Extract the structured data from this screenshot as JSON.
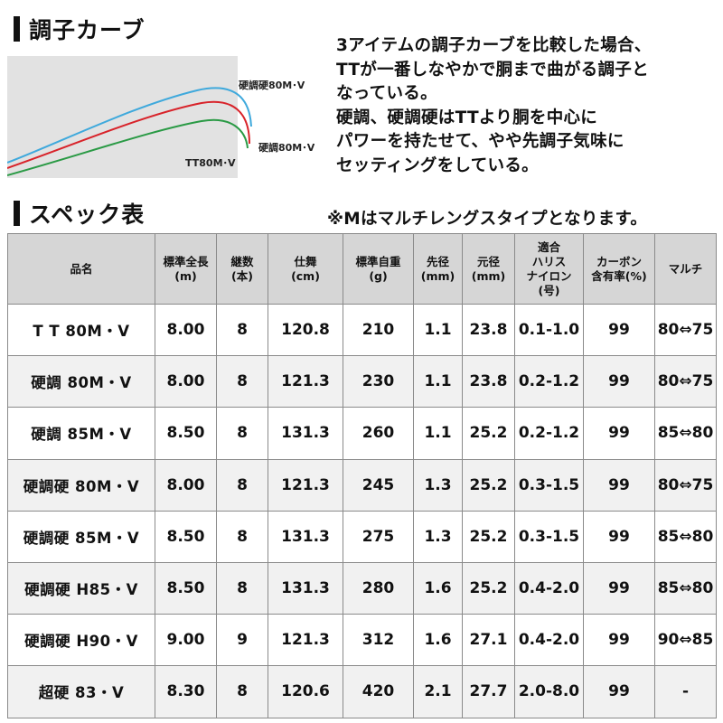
{
  "curve_section": {
    "title": "調子カーブ",
    "labels": {
      "kochokou": "硬調硬80M･V",
      "kocho": "硬調80M･V",
      "tt": "TT80M･V"
    },
    "colors": {
      "kochokou": "#3fa9dc",
      "kocho": "#d8232a",
      "tt": "#2a9a45",
      "background": "#e2e2e2"
    }
  },
  "description": [
    "3アイテムの調子カーブを比較した場合、",
    "TTが一番しなやかで胴まで曲がる調子と",
    "なっている。",
    "硬調、硬調硬はTTより胴を中心に",
    "パワーを持たせて、やや先調子気味に",
    "セッティングをしている。"
  ],
  "spec_section": {
    "title": "スペック表",
    "note": "※Mはマルチレングスタイプとなります。"
  },
  "table": {
    "headers": [
      [
        "品名"
      ],
      [
        "標準全長",
        "(m)"
      ],
      [
        "継数",
        "(本)"
      ],
      [
        "仕舞",
        "(cm)"
      ],
      [
        "標準自重",
        "(g)"
      ],
      [
        "先径",
        "(mm)"
      ],
      [
        "元径",
        "(mm)"
      ],
      [
        "適合",
        "ハリス",
        "ナイロン",
        "(号)"
      ],
      [
        "カーボン",
        "含有率(%)"
      ],
      [
        "マルチ"
      ]
    ],
    "rows": [
      [
        "T T 80M・V",
        "8.00",
        "8",
        "120.8",
        "210",
        "1.1",
        "23.8",
        "0.1-1.0",
        "99",
        "80⇔75"
      ],
      [
        "硬調 80M・V",
        "8.00",
        "8",
        "121.3",
        "230",
        "1.1",
        "23.8",
        "0.2-1.2",
        "99",
        "80⇔75"
      ],
      [
        "硬調 85M・V",
        "8.50",
        "8",
        "131.3",
        "260",
        "1.1",
        "25.2",
        "0.2-1.2",
        "99",
        "85⇔80"
      ],
      [
        "硬調硬 80M・V",
        "8.00",
        "8",
        "121.3",
        "245",
        "1.3",
        "25.2",
        "0.3-1.5",
        "99",
        "80⇔75"
      ],
      [
        "硬調硬 85M・V",
        "8.50",
        "8",
        "131.3",
        "275",
        "1.3",
        "25.2",
        "0.3-1.5",
        "99",
        "85⇔80"
      ],
      [
        "硬調硬 H85・V",
        "8.50",
        "8",
        "131.3",
        "280",
        "1.6",
        "25.2",
        "0.4-2.0",
        "99",
        "85⇔80"
      ],
      [
        "硬調硬 H90・V",
        "9.00",
        "9",
        "121.3",
        "312",
        "1.6",
        "27.1",
        "0.4-2.0",
        "99",
        "90⇔85"
      ],
      [
        "超硬 83・V",
        "8.30",
        "8",
        "120.6",
        "420",
        "2.1",
        "27.7",
        "2.0-8.0",
        "99",
        "-"
      ]
    ]
  }
}
